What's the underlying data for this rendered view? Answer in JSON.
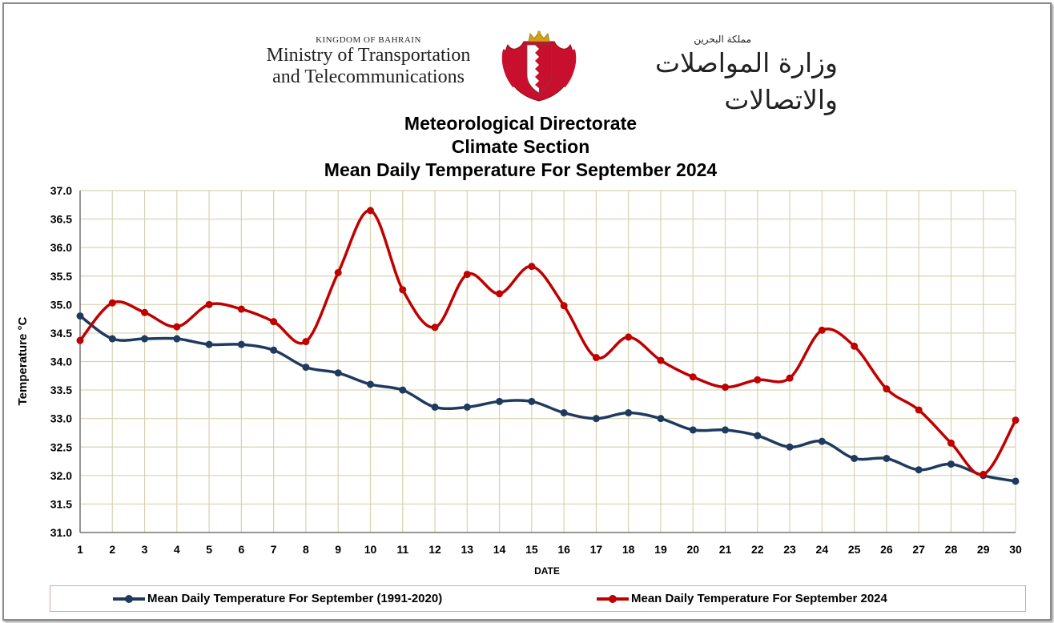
{
  "header": {
    "kingdom": "KINGDOM OF BAHRAIN",
    "ministry_line1": "Ministry of Transportation",
    "ministry_line2": "and Telecommunications",
    "arabic_kingdom": "مملكة البحرين",
    "arabic_ministry": "وزارة المواصلات والاتصالات",
    "emblem_icon": "bahrain-coat-of-arms-icon"
  },
  "chart_data": {
    "type": "line",
    "title_lines": [
      "Meteorological Directorate",
      "Climate Section",
      "Mean Daily Temperature For September 2024"
    ],
    "xlabel": "DATE",
    "ylabel": "Temperature °C",
    "ylim": [
      31.0,
      37.0
    ],
    "ytick_step": 0.5,
    "grid": true,
    "legend_position": "bottom",
    "x": [
      1,
      2,
      3,
      4,
      5,
      6,
      7,
      8,
      9,
      10,
      11,
      12,
      13,
      14,
      15,
      16,
      17,
      18,
      19,
      20,
      21,
      22,
      23,
      24,
      25,
      26,
      27,
      28,
      29,
      30
    ],
    "series": [
      {
        "name": "Mean Daily Temperature For September (1991-2020)",
        "color": "#1f3a5f",
        "values": [
          34.8,
          34.4,
          34.4,
          34.4,
          34.3,
          34.3,
          34.2,
          33.9,
          33.8,
          33.6,
          33.5,
          33.2,
          33.2,
          33.3,
          33.3,
          33.1,
          33.0,
          33.1,
          33.0,
          32.8,
          32.8,
          32.7,
          32.5,
          32.6,
          32.3,
          32.3,
          32.1,
          32.2,
          32.0,
          31.9
        ]
      },
      {
        "name": "Mean Daily Temperature For September 2024",
        "color": "#c00000",
        "values": [
          34.37,
          35.03,
          34.86,
          34.61,
          35.0,
          34.92,
          34.7,
          34.35,
          35.56,
          36.65,
          35.26,
          34.6,
          35.53,
          35.19,
          35.67,
          34.98,
          34.07,
          34.43,
          34.02,
          33.73,
          33.55,
          33.68,
          33.71,
          34.55,
          34.27,
          33.52,
          33.15,
          32.57,
          32.02,
          32.97
        ]
      }
    ]
  }
}
